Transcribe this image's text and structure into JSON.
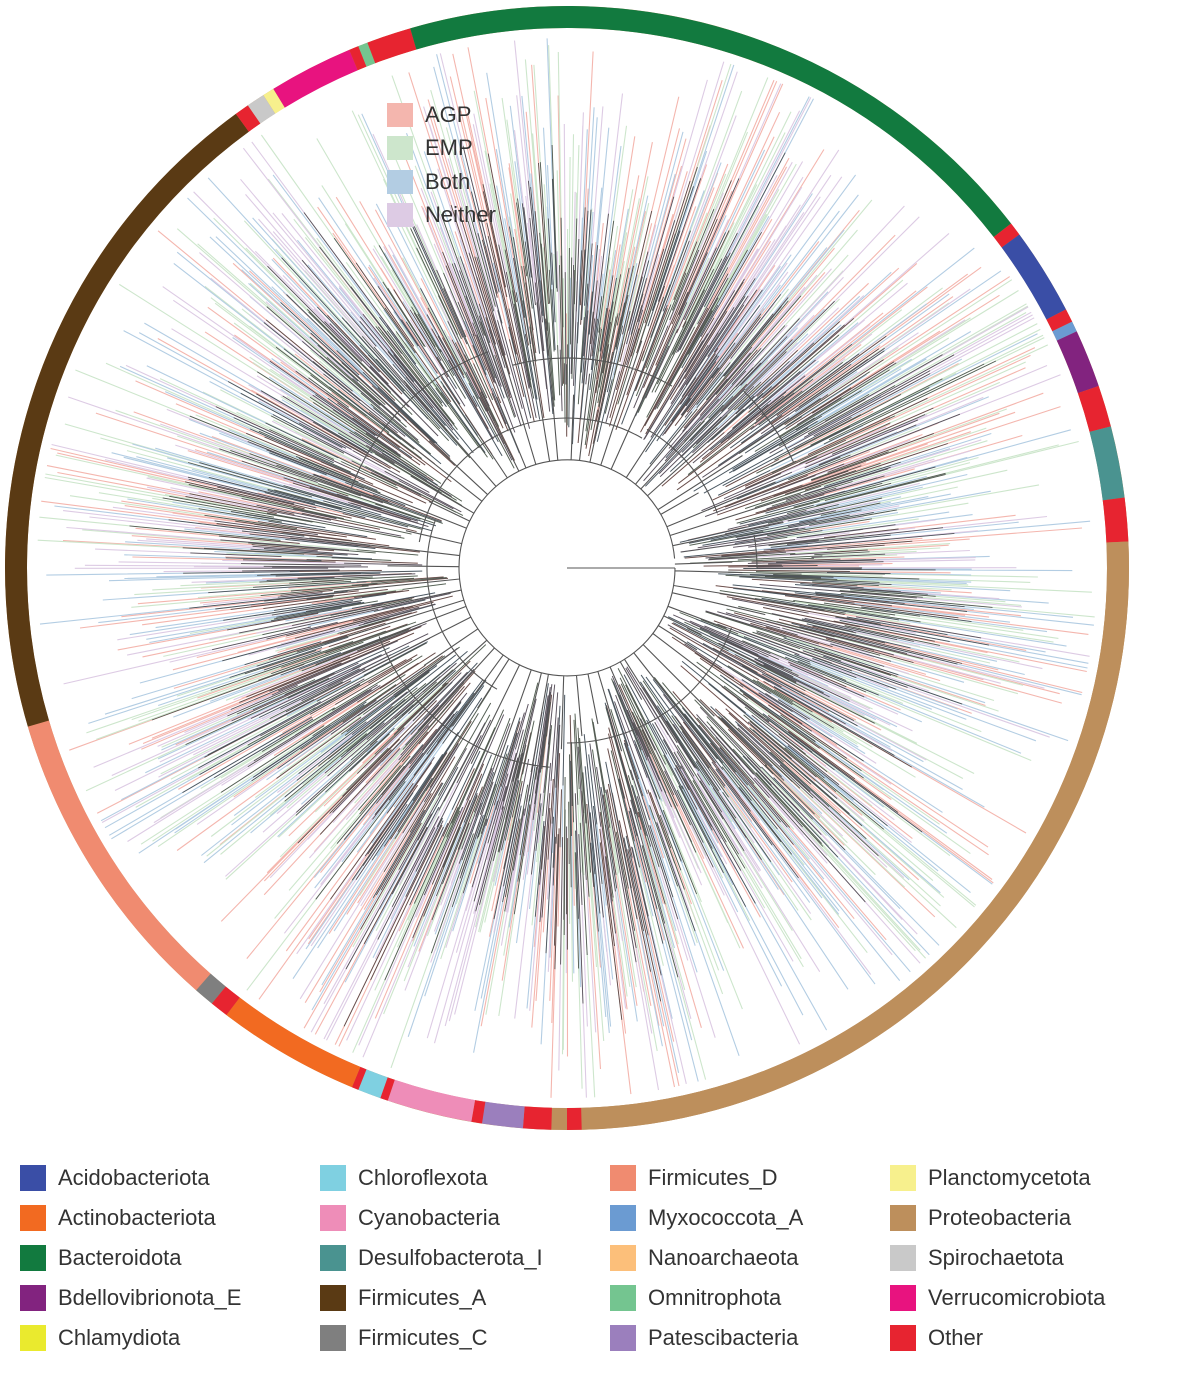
{
  "ring_segments": [
    {
      "phylum": "Proteobacteria",
      "start": 0,
      "end": 88.5
    },
    {
      "phylum": "Other",
      "start": 88.5,
      "end": 90
    },
    {
      "phylum": "Other",
      "start": 91.6,
      "end": 94.5
    },
    {
      "phylum": "Patescibacteria",
      "start": 94.5,
      "end": 98.7
    },
    {
      "phylum": "Other",
      "start": 98.7,
      "end": 99.8
    },
    {
      "phylum": "Cyanobacteria",
      "start": 99.8,
      "end": 108.6
    },
    {
      "phylum": "Other",
      "start": 108.6,
      "end": 109.4
    },
    {
      "phylum": "Chloroflexota",
      "start": 109.4,
      "end": 111.8
    },
    {
      "phylum": "Other",
      "start": 111.8,
      "end": 112.5
    },
    {
      "phylum": "Actinobacteriota",
      "start": 112.5,
      "end": 127.3
    },
    {
      "phylum": "Other",
      "start": 127.3,
      "end": 129.2
    },
    {
      "phylum": "Firmicutes_C",
      "start": 129.2,
      "end": 131.3
    },
    {
      "phylum": "Firmicutes_D",
      "start": 131.3,
      "end": 163.6
    },
    {
      "phylum": "Firmicutes_A",
      "start": 163.6,
      "end": 233.9
    },
    {
      "phylum": "Other",
      "start": 233.9,
      "end": 235.4
    },
    {
      "phylum": "Spirochaetota",
      "start": 235.4,
      "end": 237.3
    },
    {
      "phylum": "Planctomycetota",
      "start": 237.3,
      "end": 238.5
    },
    {
      "phylum": "Verrucomicrobiota",
      "start": 238.5,
      "end": 247.2
    },
    {
      "phylum": "Other",
      "start": 247.2,
      "end": 248.2
    },
    {
      "phylum": "Omnitrophota",
      "start": 248.2,
      "end": 249.2
    },
    {
      "phylum": "Other",
      "start": 249.2,
      "end": 253.8
    },
    {
      "phylum": "Bacteroidota",
      "start": 253.8,
      "end": 322.2
    },
    {
      "phylum": "Other",
      "start": 322.2,
      "end": 323.6
    },
    {
      "phylum": "Acidobacteriota",
      "start": 323.6,
      "end": 332.6
    },
    {
      "phylum": "Other",
      "start": 332.6,
      "end": 334.0
    },
    {
      "phylum": "Myxococcota_A",
      "start": 334.0,
      "end": 335.1
    },
    {
      "phylum": "Bdellovibrionota_E",
      "start": 335.1,
      "end": 341.1
    },
    {
      "phylum": "Other",
      "start": 341.1,
      "end": 345.4
    },
    {
      "phylum": "Desulfobacterota_I",
      "start": 345.4,
      "end": 352.8
    },
    {
      "phylum": "Other",
      "start": 352.8,
      "end": 357.3
    },
    {
      "phylum": "Proteobacteria",
      "start": 357.3,
      "end": 360
    }
  ],
  "inner_legend": [
    {
      "label": "AGP",
      "color": "#f4b6ae"
    },
    {
      "label": "EMP",
      "color": "#cde6cc"
    },
    {
      "label": "Both",
      "color": "#b3cde3"
    },
    {
      "label": "Neither",
      "color": "#ddcbe4"
    }
  ],
  "phylum_legend": [
    {
      "label": "Acidobacteriota",
      "color": "#3a4ea6"
    },
    {
      "label": "Actinobacteriota",
      "color": "#f26a21"
    },
    {
      "label": "Bacteroidota",
      "color": "#127a3f"
    },
    {
      "label": "Bdellovibrionota_E",
      "color": "#82237f"
    },
    {
      "label": "Chlamydiota",
      "color": "#eaea2e"
    },
    {
      "label": "Chloroflexota",
      "color": "#7fd0e1"
    },
    {
      "label": "Cyanobacteria",
      "color": "#ee8db8"
    },
    {
      "label": "Desulfobacterota_I",
      "color": "#4a9390"
    },
    {
      "label": "Firmicutes_A",
      "color": "#5a3a14"
    },
    {
      "label": "Firmicutes_C",
      "color": "#7f7f7f"
    },
    {
      "label": "Firmicutes_D",
      "color": "#f08b70"
    },
    {
      "label": "Myxococcota_A",
      "color": "#6b9bd2"
    },
    {
      "label": "Nanoarchaeota",
      "color": "#fcbf7a"
    },
    {
      "label": "Omnitrophota",
      "color": "#74c590"
    },
    {
      "label": "Patescibacteria",
      "color": "#9b7fbd"
    },
    {
      "label": "Planctomycetota",
      "color": "#f7f08d"
    },
    {
      "label": "Proteobacteria",
      "color": "#bd8f5c"
    },
    {
      "label": "Spirochaetota",
      "color": "#c9c9c9"
    },
    {
      "label": "Verrucomicrobiota",
      "color": "#e8137f"
    },
    {
      "label": "Other",
      "color": "#e72430"
    }
  ]
}
